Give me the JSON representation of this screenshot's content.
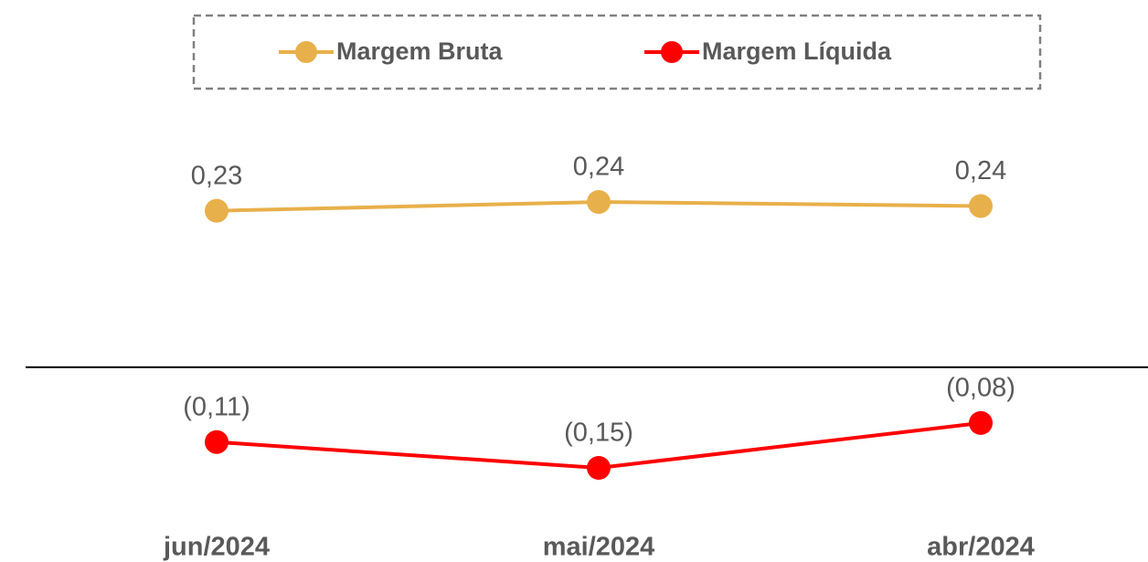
{
  "chart_data": {
    "type": "line",
    "categories": [
      "jun/2024",
      "mai/2024",
      "abr/2024"
    ],
    "series": [
      {
        "name": "Margem Bruta",
        "color": "#e8b04a",
        "values": [
          0.23,
          0.243,
          0.237
        ],
        "value_labels": [
          "0,23",
          "0,24",
          "0,24"
        ]
      },
      {
        "name": "Margem Líquida",
        "color": "#ff0000",
        "values": [
          -0.11,
          -0.148,
          -0.082
        ],
        "value_labels": [
          "(0,11)",
          "(0,15)",
          "(0,08)"
        ]
      }
    ],
    "legend": "top"
  }
}
